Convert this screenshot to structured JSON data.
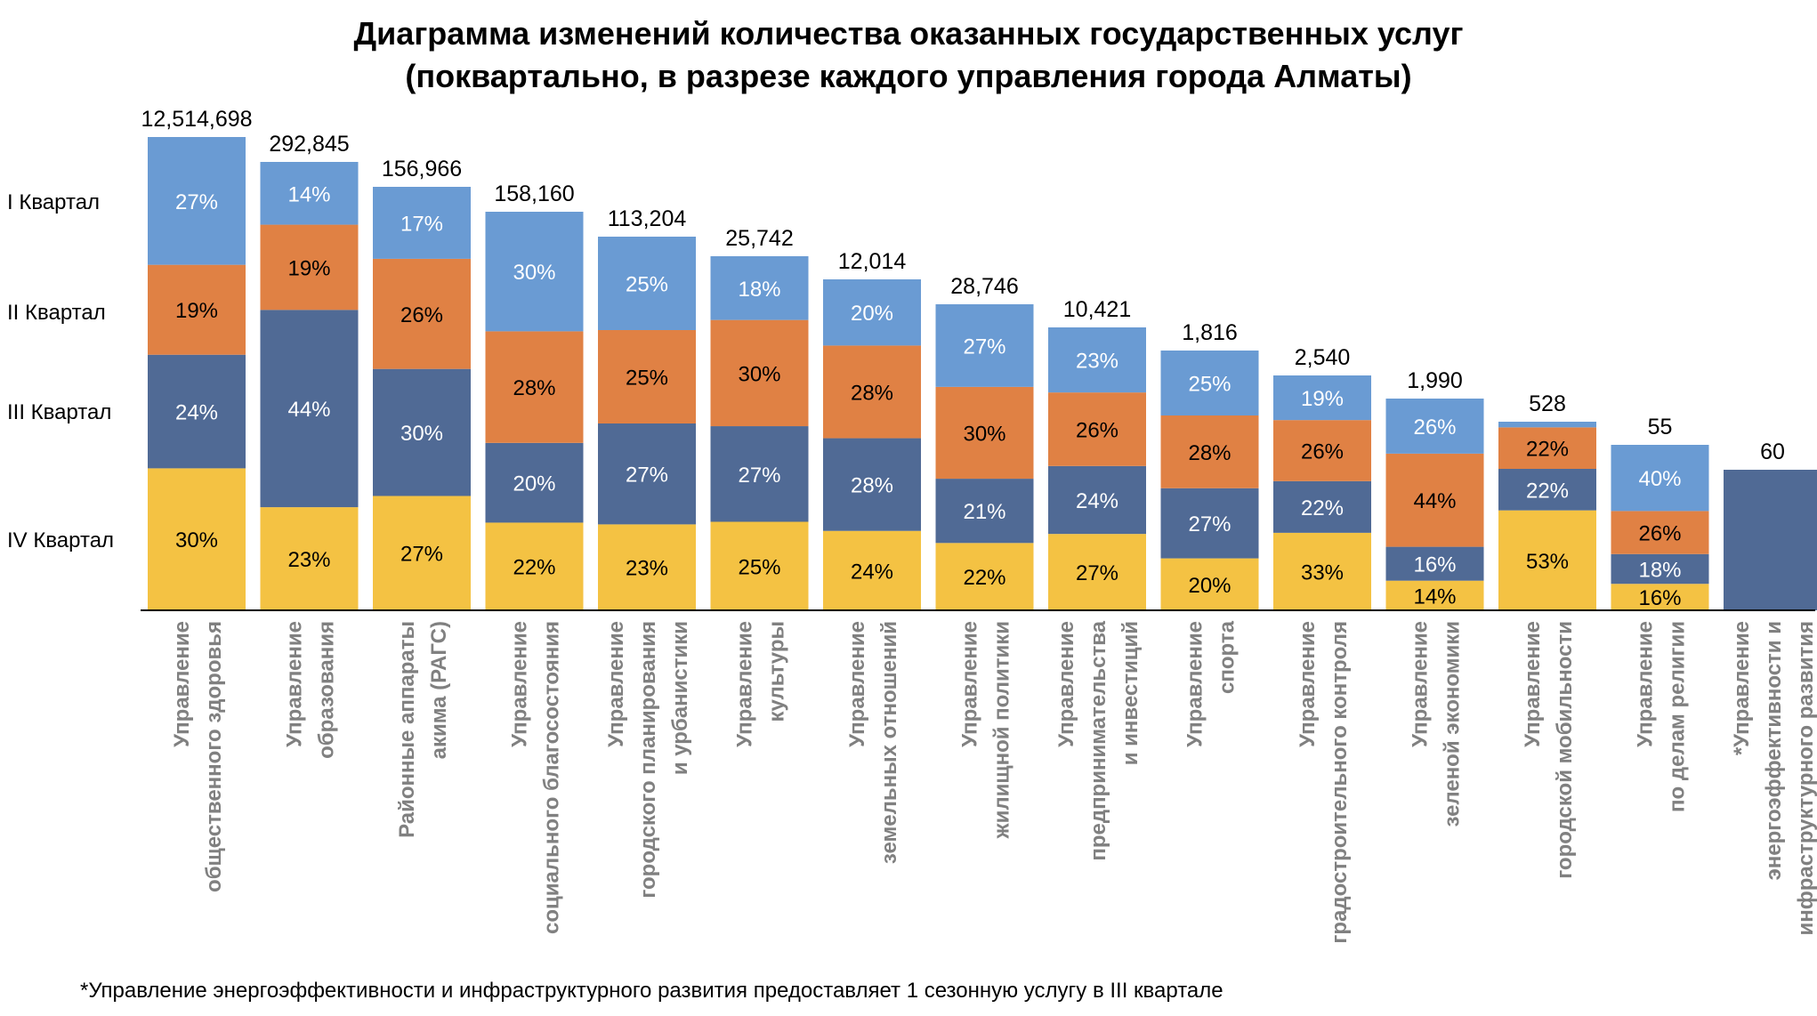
{
  "title_line1": "Диаграмма изменений количества оказанных государственных услуг",
  "title_line2": "(поквартально, в разрезе каждого управления города Алматы)",
  "footnote": "*Управление энергоэффективности и инфраструктурного развития предоставляет 1 сезонную услугу в III квартале",
  "chart_data": {
    "type": "bar",
    "stacked": true,
    "normalized_percent": true,
    "series_order_bottom_to_top": [
      "IV Квартал",
      "III Квартал",
      "II Квартал",
      "I Квартал"
    ],
    "legend_labels": [
      "I Квартал",
      "II Квартал",
      "III Квартал",
      "IV Квартал"
    ],
    "colors": {
      "I Квартал": "#6a9bd3",
      "II Квартал": "#e08144",
      "III Квартал": "#506a95",
      "IV Квартал": "#f4c243"
    },
    "categories": [
      {
        "label": [
          "Управление",
          "общественного здоровья"
        ],
        "total": "12,514,698",
        "pct": {
          "IV": "30%",
          "III": "24%",
          "II": "19%",
          "I": "27%"
        },
        "shares": {
          "IV": 0.3,
          "III": 0.24,
          "II": 0.19,
          "I": 0.27
        }
      },
      {
        "label": [
          "Управление",
          "образования"
        ],
        "total": "292,845",
        "pct": {
          "IV": "23%",
          "III": "44%",
          "II": "19%",
          "I": "14%"
        },
        "shares": {
          "IV": 0.23,
          "III": 0.44,
          "II": 0.19,
          "I": 0.14
        }
      },
      {
        "label": [
          "Районные аппараты",
          "акима (РАГС)"
        ],
        "total": "156,966",
        "pct": {
          "IV": "27%",
          "III": "30%",
          "II": "26%",
          "I": "17%"
        },
        "shares": {
          "IV": 0.27,
          "III": 0.3,
          "II": 0.26,
          "I": 0.17
        }
      },
      {
        "label": [
          "Управление",
          "социального благосостояния"
        ],
        "total": "158,160",
        "pct": {
          "IV": "22%",
          "III": "20%",
          "II": "28%",
          "I": "30%"
        },
        "shares": {
          "IV": 0.22,
          "III": 0.2,
          "II": 0.28,
          "I": 0.3
        }
      },
      {
        "label": [
          "Управление",
          "городского планирования",
          "и урбанистики"
        ],
        "total": "113,204",
        "pct": {
          "IV": "23%",
          "III": "27%",
          "II": "25%",
          "I": "25%"
        },
        "shares": {
          "IV": 0.23,
          "III": 0.27,
          "II": 0.25,
          "I": 0.25
        }
      },
      {
        "label": [
          "Управление",
          "культуры"
        ],
        "total": "25,742",
        "pct": {
          "IV": "25%",
          "III": "27%",
          "II": "30%",
          "I": "18%"
        },
        "shares": {
          "IV": 0.25,
          "III": 0.27,
          "II": 0.3,
          "I": 0.18
        }
      },
      {
        "label": [
          "Управление",
          "земельных отношений"
        ],
        "total": "12,014",
        "pct": {
          "IV": "24%",
          "III": "28%",
          "II": "28%",
          "I": "20%"
        },
        "shares": {
          "IV": 0.24,
          "III": 0.28,
          "II": 0.28,
          "I": 0.2
        }
      },
      {
        "label": [
          "Управление",
          "жилищной политики"
        ],
        "total": "28,746",
        "pct": {
          "IV": "22%",
          "III": "21%",
          "II": "30%",
          "I": "27%"
        },
        "shares": {
          "IV": 0.22,
          "III": 0.21,
          "II": 0.3,
          "I": 0.27
        }
      },
      {
        "label": [
          "Управление",
          "предпринимательства",
          "и инвестиций"
        ],
        "total": "10,421",
        "pct": {
          "IV": "27%",
          "III": "24%",
          "II": "26%",
          "I": "23%"
        },
        "shares": {
          "IV": 0.27,
          "III": 0.24,
          "II": 0.26,
          "I": 0.23
        }
      },
      {
        "label": [
          "Управление",
          "спорта"
        ],
        "total": "1,816",
        "pct": {
          "IV": "20%",
          "III": "27%",
          "II": "28%",
          "I": "25%"
        },
        "shares": {
          "IV": 0.2,
          "III": 0.27,
          "II": 0.28,
          "I": 0.25
        }
      },
      {
        "label": [
          "Управление",
          "градостроительного контроля"
        ],
        "total": "2,540",
        "pct": {
          "IV": "33%",
          "III": "22%",
          "II": "26%",
          "I": "19%"
        },
        "shares": {
          "IV": 0.33,
          "III": 0.22,
          "II": 0.26,
          "I": 0.19
        }
      },
      {
        "label": [
          "Управление",
          "зеленой экономики"
        ],
        "total": "1,990",
        "pct": {
          "IV": "14%",
          "III": "16%",
          "II": "44%",
          "I": "26%"
        },
        "shares": {
          "IV": 0.14,
          "III": 0.16,
          "II": 0.44,
          "I": 0.26
        }
      },
      {
        "label": [
          "Управление",
          "городской мобильности"
        ],
        "total": "528",
        "pct": {
          "IV": "53%",
          "III": "22%",
          "II": "22%",
          "I": ""
        },
        "shares": {
          "IV": 0.53,
          "III": 0.22,
          "II": 0.22,
          "I": 0.03
        }
      },
      {
        "label": [
          "Управление",
          "по делам религии"
        ],
        "total": "55",
        "pct": {
          "IV": "16%",
          "III": "18%",
          "II": "26%",
          "I": "40%"
        },
        "shares": {
          "IV": 0.16,
          "III": 0.18,
          "II": 0.26,
          "I": 0.4
        }
      },
      {
        "label": [
          "*Управление",
          "энергоэффективности и",
          "инфраструктурного развития"
        ],
        "total": "60",
        "pct": {
          "IV": "",
          "III": "",
          "II": "",
          "I": ""
        },
        "shares": {
          "IV": 0,
          "III": 1.0,
          "II": 0,
          "I": 0
        }
      }
    ]
  }
}
